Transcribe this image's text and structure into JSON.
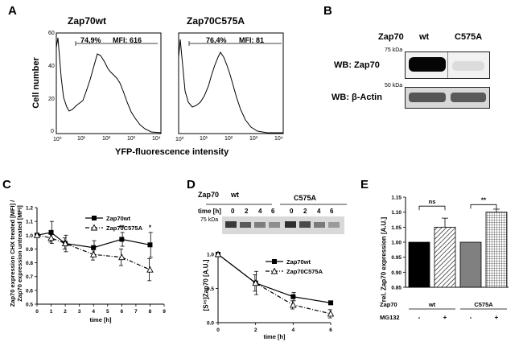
{
  "panels": {
    "A": {
      "letter": "A",
      "titles": [
        "Zap70wt",
        "Zap70C575A"
      ],
      "stats": [
        {
          "percent": "74,9%",
          "mfi": "MFI: 616"
        },
        {
          "percent": "76,4%",
          "mfi": "MFI: 81"
        }
      ],
      "ylabel": "Cell number",
      "xlabel": "YFP-fluorescence intensity",
      "yticks": [
        "0",
        "20",
        "40",
        "60"
      ],
      "xticks": [
        "10⁰",
        "10¹",
        "10²",
        "10³",
        "10⁴"
      ]
    },
    "B": {
      "letter": "B",
      "header": {
        "label": "Zap70",
        "lane1": "wt",
        "lane2": "C575A"
      },
      "rows": [
        {
          "label": "WB: Zap70",
          "marker": "75 kDa"
        },
        {
          "label": "WB: β-Actin",
          "marker": "50 kDa"
        }
      ]
    },
    "C": {
      "letter": "C",
      "ylabel_line1": "Zap70 expression CHX treated [MFI] /",
      "ylabel_line2": "Zap70 expression untreated [MFI]",
      "significance": [
        "**",
        "*"
      ]
    },
    "D": {
      "letter": "D",
      "zap_label": "Zap70",
      "group_wt": "wt",
      "group_mut": "C575A",
      "time_label": "time [h]",
      "times": [
        "0",
        "2",
        "4",
        "6",
        "0",
        "2",
        "4",
        "6"
      ],
      "marker": "75 kDa",
      "ylabel": "[S³⁵]Zap70 [A.U.]"
    },
    "E": {
      "letter": "E",
      "ylabel": "rel. Zap70 expression [A.U.]",
      "sig": [
        "ns",
        "**"
      ],
      "zap_label": "Zap70",
      "mg_label": "MG132",
      "groups": [
        "wt",
        "C575A"
      ],
      "treat": [
        "-",
        "+",
        "-",
        "+"
      ]
    }
  },
  "chart_data": [
    {
      "type": "line",
      "panel": "C",
      "xlabel": "time [h]",
      "ylabel": "Zap70 expression CHX treated [MFI] / Zap70 expression untreated [MFI]",
      "xlim": [
        0,
        9
      ],
      "ylim": [
        0.5,
        1.2
      ],
      "xticks": [
        0,
        1,
        2,
        3,
        4,
        5,
        6,
        7,
        8,
        9
      ],
      "yticks": [
        0.5,
        0.6,
        0.7,
        0.8,
        0.9,
        1.0,
        1.1,
        1.2
      ],
      "series": [
        {
          "name": "Zap70wt",
          "x": [
            0,
            1,
            2,
            4,
            6,
            8
          ],
          "values": [
            1.0,
            1.02,
            0.94,
            0.91,
            0.97,
            0.93
          ],
          "err": [
            0,
            0.08,
            0.06,
            0.05,
            0.05,
            0.09
          ]
        },
        {
          "name": "Zap70C575A",
          "x": [
            0,
            1,
            2,
            4,
            6,
            8
          ],
          "values": [
            1.0,
            0.98,
            0.94,
            0.86,
            0.84,
            0.75
          ],
          "err": [
            0,
            0.03,
            0.04,
            0.04,
            0.06,
            0.08
          ]
        }
      ]
    },
    {
      "type": "line",
      "panel": "D",
      "xlabel": "time [h]",
      "ylabel": "[S³⁵]Zap70 [A.U.]",
      "xlim": [
        0,
        6
      ],
      "ylim": [
        0,
        1.0
      ],
      "xticks": [
        0,
        2,
        4,
        6
      ],
      "yticks": [
        0.0,
        0.5,
        1.0
      ],
      "series": [
        {
          "name": "Zap70wt",
          "x": [
            0,
            2,
            4,
            6
          ],
          "values": [
            1.0,
            0.58,
            0.38,
            0.29
          ],
          "err": [
            0,
            0.17,
            0.06,
            0.02
          ]
        },
        {
          "name": "Zap70C575A",
          "x": [
            0,
            2,
            4,
            6
          ],
          "values": [
            1.0,
            0.58,
            0.26,
            0.13
          ],
          "err": [
            0,
            0.12,
            0.06,
            0.06
          ]
        }
      ]
    },
    {
      "type": "bar",
      "panel": "E",
      "ylabel": "rel. Zap70 expression [A.U.]",
      "ylim": [
        0.85,
        1.15
      ],
      "yticks": [
        0.85,
        0.9,
        0.95,
        1.0,
        1.05,
        1.1,
        1.15
      ],
      "ytick_labels": [
        "0.85",
        "0.90",
        "0.95",
        "1.00",
        "1.05",
        "1.10",
        "1.15"
      ],
      "categories": [
        "wt -",
        "wt +",
        "C575A -",
        "C575A +"
      ],
      "values": [
        1.0,
        1.05,
        1.0,
        1.1
      ],
      "err": [
        0,
        0.03,
        0,
        0.01
      ],
      "fills": [
        "#000000",
        "hatch",
        "#808080",
        "grid"
      ]
    }
  ]
}
